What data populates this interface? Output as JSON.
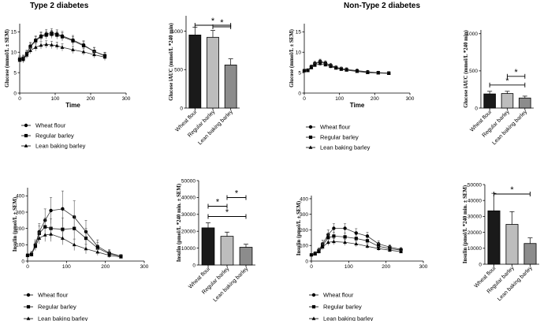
{
  "sections": {
    "left": "Type 2 diabetes",
    "right": "Non-Type 2 diabetes"
  },
  "legend": [
    "Wheat flour",
    "Regular barley",
    "Lean baking barley"
  ],
  "colors": {
    "wheat": "#1a1a1a",
    "regular": "#bdbdbd",
    "lean": "#8c8c8c",
    "line": "#333333"
  },
  "chart_data": [
    {
      "id": "t2d_glucose_curve",
      "type": "line",
      "xlabel": "Time",
      "ylabel": "Glucose (mmol/L ± SEM)",
      "xlim": [
        0,
        300
      ],
      "xticks": [
        0,
        100,
        200,
        300
      ],
      "ylim": [
        0,
        17
      ],
      "yticks": [
        0,
        5,
        10,
        15
      ],
      "x": [
        0,
        10,
        20,
        30,
        45,
        60,
        75,
        90,
        105,
        120,
        150,
        180,
        210,
        240
      ],
      "series": [
        {
          "name": "Wheat flour",
          "marker": "circle",
          "values": [
            8.2,
            8.4,
            9.5,
            11.5,
            13.0,
            14.0,
            14.5,
            14.8,
            14.5,
            14.0,
            13.0,
            11.8,
            10.2,
            9.2
          ],
          "err": [
            0.8,
            0.8,
            0.8,
            0.9,
            1.0,
            1.0,
            1.1,
            1.0,
            1.0,
            1.1,
            1.1,
            1.0,
            1.0,
            0.8
          ]
        },
        {
          "name": "Regular barley",
          "marker": "square",
          "values": [
            8.3,
            8.5,
            9.7,
            11.3,
            12.8,
            13.8,
            14.2,
            14.4,
            14.2,
            13.8,
            12.8,
            11.6,
            10.2,
            9.1
          ],
          "err": [
            0.8,
            0.8,
            0.8,
            0.9,
            1.0,
            1.0,
            1.0,
            1.0,
            1.0,
            1.0,
            1.0,
            1.0,
            0.9,
            0.8
          ]
        },
        {
          "name": "Lean baking barley",
          "marker": "triangle",
          "values": [
            8.0,
            8.2,
            9.3,
            10.4,
            11.2,
            11.7,
            11.9,
            11.8,
            11.6,
            11.2,
            10.6,
            10.1,
            9.4,
            8.8
          ],
          "err": [
            0.8,
            0.8,
            0.8,
            0.8,
            0.9,
            0.9,
            0.9,
            0.9,
            0.9,
            0.9,
            0.9,
            0.8,
            0.8,
            0.8
          ]
        }
      ]
    },
    {
      "id": "t2d_glucose_iauc",
      "type": "bar",
      "ylabel": "Glucose iAUC (mmol/L *240 min)",
      "ylim": [
        0,
        1200
      ],
      "yticks": [
        0,
        500,
        1000
      ],
      "categories": [
        "Wheat flour",
        "Regular barley",
        "Lean baking barley"
      ],
      "values": [
        950,
        920,
        560
      ],
      "err": [
        100,
        90,
        80
      ],
      "significance": [
        {
          "from": 0,
          "to": 2,
          "label": "*"
        },
        {
          "from": 1,
          "to": 2,
          "label": "*"
        }
      ]
    },
    {
      "id": "nt2d_glucose_curve",
      "type": "line",
      "xlabel": "Time",
      "ylabel": "Glucose (mmol/L ± SEM)",
      "xlim": [
        0,
        300
      ],
      "xticks": [
        0,
        100,
        200,
        300
      ],
      "ylim": [
        0,
        17
      ],
      "yticks": [
        0,
        5,
        10,
        15
      ],
      "x": [
        0,
        10,
        20,
        30,
        45,
        60,
        75,
        90,
        105,
        120,
        150,
        180,
        210,
        240
      ],
      "series": [
        {
          "name": "Wheat flour",
          "marker": "circle",
          "values": [
            5.5,
            5.6,
            6.5,
            7.3,
            7.8,
            7.4,
            6.8,
            6.3,
            6.0,
            5.8,
            5.5,
            5.2,
            5.0,
            4.9
          ],
          "err": [
            0.3,
            0.3,
            0.4,
            0.5,
            0.5,
            0.5,
            0.5,
            0.4,
            0.4,
            0.4,
            0.4,
            0.3,
            0.3,
            0.3
          ]
        },
        {
          "name": "Regular barley",
          "marker": "square",
          "values": [
            5.5,
            5.6,
            6.4,
            7.1,
            7.6,
            7.2,
            6.7,
            6.2,
            5.9,
            5.7,
            5.4,
            5.1,
            5.0,
            4.9
          ],
          "err": [
            0.3,
            0.3,
            0.4,
            0.5,
            0.5,
            0.5,
            0.4,
            0.4,
            0.4,
            0.4,
            0.3,
            0.3,
            0.3,
            0.3
          ]
        },
        {
          "name": "Lean baking barley",
          "marker": "triangle",
          "values": [
            5.5,
            5.5,
            6.2,
            6.8,
            7.2,
            6.9,
            6.5,
            6.1,
            5.8,
            5.6,
            5.3,
            5.0,
            4.9,
            4.8
          ],
          "err": [
            0.3,
            0.3,
            0.4,
            0.4,
            0.5,
            0.4,
            0.4,
            0.4,
            0.4,
            0.3,
            0.3,
            0.3,
            0.3,
            0.3
          ]
        }
      ]
    },
    {
      "id": "nt2d_glucose_iauc",
      "type": "bar",
      "ylabel": "Glucose iAUC (mmol/L *240 min)",
      "ylim": [
        0,
        1050
      ],
      "yticks": [
        0,
        500,
        1000
      ],
      "categories": [
        "Wheat flour",
        "Regular barley",
        "Lean baking barley"
      ],
      "values": [
        190,
        195,
        135
      ],
      "err": [
        35,
        30,
        25
      ],
      "significance": [
        {
          "from": 0,
          "to": 2,
          "label": "*"
        },
        {
          "from": 1,
          "to": 2,
          "label": "*"
        }
      ]
    },
    {
      "id": "t2d_insulin_curve",
      "type": "line",
      "xlabel": "",
      "ylabel": "Insulin (pmol/L ± SEM)",
      "xlim": [
        0,
        300
      ],
      "xticks": [
        0,
        100,
        200,
        300
      ],
      "ylim": [
        0,
        450
      ],
      "yticks": [
        0,
        100,
        200,
        300,
        400
      ],
      "x": [
        0,
        10,
        20,
        30,
        45,
        60,
        90,
        120,
        150,
        180,
        210,
        240
      ],
      "series": [
        {
          "name": "Wheat flour",
          "marker": "circle",
          "values": [
            35,
            45,
            100,
            180,
            250,
            310,
            320,
            270,
            180,
            90,
            50,
            30
          ],
          "err": [
            10,
            15,
            30,
            50,
            70,
            80,
            110,
            100,
            70,
            40,
            20,
            10
          ]
        },
        {
          "name": "Regular barley",
          "marker": "square",
          "values": [
            35,
            40,
            95,
            170,
            210,
            200,
            195,
            200,
            140,
            80,
            45,
            30
          ],
          "err": [
            10,
            12,
            25,
            45,
            55,
            60,
            70,
            80,
            60,
            35,
            20,
            10
          ]
        },
        {
          "name": "Lean baking barley",
          "marker": "triangle",
          "values": [
            35,
            40,
            90,
            140,
            160,
            165,
            140,
            100,
            75,
            55,
            35,
            25
          ],
          "err": [
            10,
            12,
            25,
            35,
            40,
            45,
            40,
            35,
            30,
            20,
            15,
            10
          ]
        }
      ]
    },
    {
      "id": "t2d_insulin_iauc",
      "type": "bar",
      "ylabel": "Insulin (pmol/L *240 min. ± SEM)",
      "ylim": [
        0,
        50000
      ],
      "yticks": [
        0,
        10000,
        20000,
        30000,
        40000,
        50000
      ],
      "categories": [
        "Wheat flour",
        "Regular barley",
        "Lean baking barley"
      ],
      "values": [
        22000,
        17000,
        10500
      ],
      "err": [
        3000,
        2500,
        1800
      ],
      "significance": [
        {
          "from": 0,
          "to": 2,
          "label": "*"
        },
        {
          "from": 0,
          "to": 1,
          "label": "*"
        },
        {
          "from": 1,
          "to": 2,
          "label": "*"
        }
      ]
    },
    {
      "id": "nt2d_insulin_curve",
      "type": "line",
      "xlabel": "",
      "ylabel": "Insulin (pmol/L ± SEM)",
      "xlim": [
        0,
        300
      ],
      "xticks": [
        0,
        100,
        200,
        300
      ],
      "ylim": [
        0,
        420
      ],
      "yticks": [
        0,
        100,
        200,
        300,
        400
      ],
      "x": [
        0,
        10,
        20,
        30,
        45,
        60,
        90,
        120,
        150,
        180,
        210,
        240
      ],
      "series": [
        {
          "name": "Wheat flour",
          "marker": "circle",
          "values": [
            40,
            50,
            70,
            110,
            170,
            210,
            210,
            180,
            160,
            110,
            90,
            75
          ],
          "err": [
            8,
            10,
            15,
            25,
            30,
            30,
            30,
            28,
            25,
            20,
            15,
            12
          ]
        },
        {
          "name": "Regular barley",
          "marker": "square",
          "values": [
            40,
            48,
            65,
            100,
            150,
            160,
            155,
            145,
            130,
            95,
            80,
            70
          ],
          "err": [
            8,
            10,
            15,
            20,
            25,
            25,
            25,
            22,
            20,
            18,
            14,
            12
          ]
        },
        {
          "name": "Lean baking barley",
          "marker": "triangle",
          "values": [
            40,
            45,
            60,
            90,
            120,
            125,
            120,
            110,
            95,
            80,
            70,
            60
          ],
          "err": [
            8,
            10,
            12,
            18,
            20,
            20,
            20,
            18,
            16,
            14,
            12,
            10
          ]
        }
      ]
    },
    {
      "id": "nt2d_insulin_iauc",
      "type": "bar",
      "ylabel": "Insulin (pmol/L *240 min. ± SEM)",
      "ylim": [
        0,
        50000
      ],
      "yticks": [
        0,
        10000,
        20000,
        30000,
        40000,
        50000
      ],
      "categories": [
        "Wheat flour",
        "Regular barley",
        "Lean baking barley"
      ],
      "values": [
        33500,
        25000,
        13000
      ],
      "err": [
        11000,
        8000,
        3500
      ],
      "significance": [
        {
          "from": 0,
          "to": 2,
          "label": "*"
        }
      ]
    }
  ]
}
